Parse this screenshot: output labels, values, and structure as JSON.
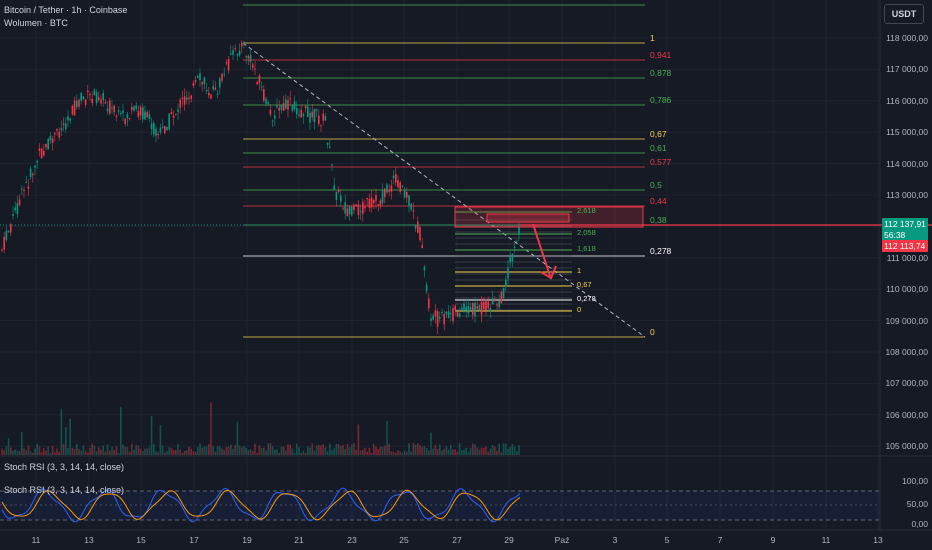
{
  "header": {
    "symbol": "Bitcoin / Tether · 1h · Coinbase",
    "volume": "Wolumen · BTC",
    "currency": "USDT"
  },
  "price_axis": [
    "118 000,00",
    "117 000,00",
    "116 000,00",
    "115 000,00",
    "114 000,00",
    "113 000,00",
    "112 000,00",
    "111 000,00",
    "110 000,00",
    "109 000,00",
    "108 000,00",
    "107 000,00",
    "106 000,00",
    "105 000,00"
  ],
  "price_tags": {
    "last_price": "112 137,91",
    "countdown": "56:38",
    "ask_price": "112 113,74",
    "last_color": "#089981",
    "ask_color": "#f23645"
  },
  "fib_main": [
    {
      "label": "1",
      "color": "#f7d34a"
    },
    {
      "label": "0,941",
      "color": "#f23645"
    },
    {
      "label": "0,878",
      "color": "#4caf50"
    },
    {
      "label": "0,786",
      "color": "#4caf50"
    },
    {
      "label": "0,67",
      "color": "#f7d34a"
    },
    {
      "label": "0,61",
      "color": "#4caf50"
    },
    {
      "label": "0,577",
      "color": "#f23645"
    },
    {
      "label": "0,5",
      "color": "#4caf50"
    },
    {
      "label": "0,44",
      "color": "#f23645"
    },
    {
      "label": "0,38",
      "color": "#4caf50"
    },
    {
      "label": "0,278",
      "color": "#ffffff"
    },
    {
      "label": "0",
      "color": "#f7d34a"
    }
  ],
  "fib_small": [
    "2,618",
    "2,058",
    "1,618",
    "1",
    "0,67",
    "0,278",
    "0"
  ],
  "time_axis": [
    "11",
    "13",
    "15",
    "17",
    "19",
    "21",
    "23",
    "25",
    "27",
    "29",
    "Paź",
    "3",
    "5",
    "7",
    "9",
    "11",
    "13"
  ],
  "rsi": {
    "label1": "Stoch RSI (3, 3, 14, 14, close)",
    "label2": "Stoch RSI (3, 3, 14, 14, close)",
    "levels": [
      "100,00",
      "50,00",
      "0,00"
    ]
  }
}
